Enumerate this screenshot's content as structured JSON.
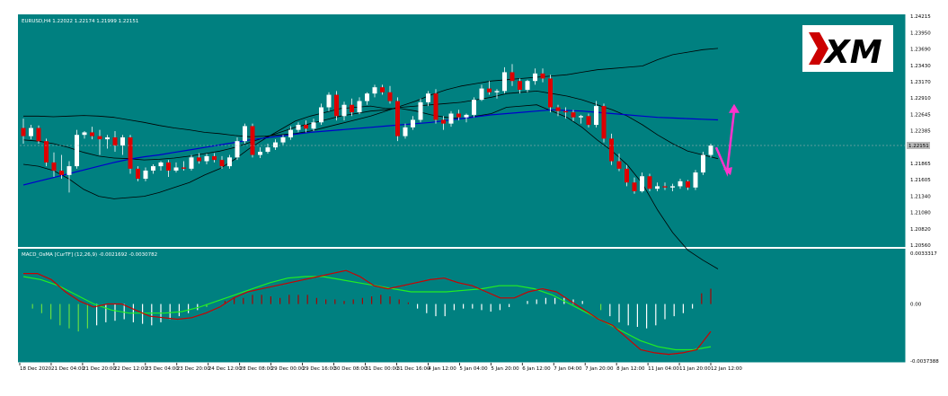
{
  "colors": {
    "background": "#008080",
    "frame": "#ffffff",
    "bull_candle": "#ffffff",
    "bear_candle": "#dd0000",
    "wick": "#ffffff",
    "bands": "#000000",
    "ma": "#0000cc",
    "macd_main": "#cc0000",
    "macd_signal": "#22ee22",
    "hist_pos": "#ffffff",
    "hist_neg_light": "#66dd44",
    "hist_pos_red": "#aa0000",
    "arrow": "#ff33cc",
    "current_price_line": "#bbbbbb",
    "logo_bg": "#ffffff",
    "logo_red": "#cc0000",
    "logo_black": "#000000"
  },
  "logo": {
    "text": "XM",
    "name": "xm-logo"
  },
  "chart_data": [
    {
      "type": "candlestick",
      "title": "EURUSD,H4  1.22022 1.22174 1.21999 1.22151",
      "symbol": "EURUSD",
      "timeframe": "H4",
      "ohlc_header": {
        "open": "1.22022",
        "high": "1.22174",
        "low": "1.21999",
        "close": "1.22151"
      },
      "current_price_label": "1.22151",
      "ylim": [
        1.2056,
        1.24215
      ],
      "y_ticks": [
        "1.24215",
        "1.23950",
        "1.23690",
        "1.23430",
        "1.23170",
        "1.22910",
        "1.22645",
        "1.22385",
        "1.21865",
        "1.21605",
        "1.21340",
        "1.21080",
        "1.20820",
        "1.20560"
      ],
      "x_tick_labels": [
        "18 Dec 2020",
        "21 Dec 04:00",
        "21 Dec 20:00",
        "22 Dec 12:00",
        "23 Dec 04:00",
        "23 Dec 20:00",
        "24 Dec 12:00",
        "28 Dec 08:00",
        "29 Dec 00:00",
        "29 Dec 16:00",
        "30 Dec 08:00",
        "31 Dec 00:00",
        "31 Dec 16:00",
        "4 Jan 12:00",
        "5 Jan 04:00",
        "5 Jan 20:00",
        "6 Jan 12:00",
        "7 Jan 04:00",
        "7 Jan 20:00",
        "8 Jan 12:00",
        "11 Jan 04:00",
        "11 Jan 20:00",
        "12 Jan 12:00"
      ],
      "candles": [
        {
          "o": 1.2243,
          "h": 1.2258,
          "l": 1.2218,
          "c": 1.223
        },
        {
          "o": 1.223,
          "h": 1.2248,
          "l": 1.2225,
          "c": 1.2243
        },
        {
          "o": 1.2243,
          "h": 1.2247,
          "l": 1.2218,
          "c": 1.2222
        },
        {
          "o": 1.2222,
          "h": 1.2226,
          "l": 1.2182,
          "c": 1.2188
        },
        {
          "o": 1.2188,
          "h": 1.2204,
          "l": 1.2165,
          "c": 1.2175
        },
        {
          "o": 1.2175,
          "h": 1.22,
          "l": 1.2162,
          "c": 1.2168
        },
        {
          "o": 1.2168,
          "h": 1.219,
          "l": 1.214,
          "c": 1.2182
        },
        {
          "o": 1.2182,
          "h": 1.224,
          "l": 1.2178,
          "c": 1.2232
        },
        {
          "o": 1.2232,
          "h": 1.2238,
          "l": 1.2226,
          "c": 1.2236
        },
        {
          "o": 1.2236,
          "h": 1.2245,
          "l": 1.2225,
          "c": 1.223
        },
        {
          "o": 1.223,
          "h": 1.224,
          "l": 1.22,
          "c": 1.2225
        },
        {
          "o": 1.2225,
          "h": 1.2232,
          "l": 1.221,
          "c": 1.2228
        },
        {
          "o": 1.2228,
          "h": 1.2238,
          "l": 1.2205,
          "c": 1.2215
        },
        {
          "o": 1.2215,
          "h": 1.2232,
          "l": 1.22,
          "c": 1.2228
        },
        {
          "o": 1.2228,
          "h": 1.2232,
          "l": 1.217,
          "c": 1.2178
        },
        {
          "o": 1.2178,
          "h": 1.2182,
          "l": 1.2158,
          "c": 1.2162
        },
        {
          "o": 1.2162,
          "h": 1.218,
          "l": 1.2158,
          "c": 1.2175
        },
        {
          "o": 1.2175,
          "h": 1.2185,
          "l": 1.217,
          "c": 1.2182
        },
        {
          "o": 1.2182,
          "h": 1.219,
          "l": 1.2175,
          "c": 1.2188
        },
        {
          "o": 1.2188,
          "h": 1.2192,
          "l": 1.2165,
          "c": 1.2175
        },
        {
          "o": 1.2175,
          "h": 1.2188,
          "l": 1.2172,
          "c": 1.218
        },
        {
          "o": 1.218,
          "h": 1.219,
          "l": 1.2175,
          "c": 1.2178
        },
        {
          "o": 1.2178,
          "h": 1.22,
          "l": 1.2175,
          "c": 1.2196
        },
        {
          "o": 1.2196,
          "h": 1.2203,
          "l": 1.2186,
          "c": 1.219
        },
        {
          "o": 1.219,
          "h": 1.2202,
          "l": 1.2185,
          "c": 1.2198
        },
        {
          "o": 1.2198,
          "h": 1.2203,
          "l": 1.2188,
          "c": 1.2192
        },
        {
          "o": 1.2192,
          "h": 1.2198,
          "l": 1.2178,
          "c": 1.2182
        },
        {
          "o": 1.2182,
          "h": 1.22,
          "l": 1.2178,
          "c": 1.2196
        },
        {
          "o": 1.2196,
          "h": 1.2228,
          "l": 1.2192,
          "c": 1.2222
        },
        {
          "o": 1.2222,
          "h": 1.225,
          "l": 1.2218,
          "c": 1.2246
        },
        {
          "o": 1.2246,
          "h": 1.225,
          "l": 1.2196,
          "c": 1.22
        },
        {
          "o": 1.22,
          "h": 1.2212,
          "l": 1.2195,
          "c": 1.2205
        },
        {
          "o": 1.2205,
          "h": 1.2218,
          "l": 1.2202,
          "c": 1.2212
        },
        {
          "o": 1.2212,
          "h": 1.2225,
          "l": 1.2208,
          "c": 1.222
        },
        {
          "o": 1.222,
          "h": 1.2232,
          "l": 1.2216,
          "c": 1.2228
        },
        {
          "o": 1.2228,
          "h": 1.2246,
          "l": 1.2224,
          "c": 1.224
        },
        {
          "o": 1.224,
          "h": 1.2252,
          "l": 1.2236,
          "c": 1.2248
        },
        {
          "o": 1.2248,
          "h": 1.2255,
          "l": 1.2236,
          "c": 1.2242
        },
        {
          "o": 1.2242,
          "h": 1.2258,
          "l": 1.2238,
          "c": 1.2252
        },
        {
          "o": 1.2252,
          "h": 1.2282,
          "l": 1.2248,
          "c": 1.2276
        },
        {
          "o": 1.2276,
          "h": 1.23,
          "l": 1.227,
          "c": 1.2296
        },
        {
          "o": 1.2296,
          "h": 1.2302,
          "l": 1.2255,
          "c": 1.2262
        },
        {
          "o": 1.2262,
          "h": 1.2285,
          "l": 1.2255,
          "c": 1.228
        },
        {
          "o": 1.228,
          "h": 1.229,
          "l": 1.2262,
          "c": 1.2268
        },
        {
          "o": 1.2268,
          "h": 1.2292,
          "l": 1.2265,
          "c": 1.2286
        },
        {
          "o": 1.2286,
          "h": 1.23,
          "l": 1.228,
          "c": 1.2298
        },
        {
          "o": 1.2298,
          "h": 1.2312,
          "l": 1.2292,
          "c": 1.2308
        },
        {
          "o": 1.2308,
          "h": 1.2312,
          "l": 1.2296,
          "c": 1.23
        },
        {
          "o": 1.23,
          "h": 1.231,
          "l": 1.2282,
          "c": 1.2286
        },
        {
          "o": 1.2286,
          "h": 1.2292,
          "l": 1.2222,
          "c": 1.223
        },
        {
          "o": 1.223,
          "h": 1.225,
          "l": 1.2226,
          "c": 1.2244
        },
        {
          "o": 1.2244,
          "h": 1.2262,
          "l": 1.224,
          "c": 1.2256
        },
        {
          "o": 1.2256,
          "h": 1.229,
          "l": 1.2252,
          "c": 1.2284
        },
        {
          "o": 1.2284,
          "h": 1.2302,
          "l": 1.2278,
          "c": 1.2298
        },
        {
          "o": 1.2298,
          "h": 1.2305,
          "l": 1.225,
          "c": 1.2256
        },
        {
          "o": 1.2256,
          "h": 1.2262,
          "l": 1.224,
          "c": 1.225
        },
        {
          "o": 1.225,
          "h": 1.227,
          "l": 1.2245,
          "c": 1.2266
        },
        {
          "o": 1.2266,
          "h": 1.2272,
          "l": 1.2255,
          "c": 1.226
        },
        {
          "o": 1.226,
          "h": 1.2266,
          "l": 1.2252,
          "c": 1.2264
        },
        {
          "o": 1.2264,
          "h": 1.2292,
          "l": 1.226,
          "c": 1.2288
        },
        {
          "o": 1.2288,
          "h": 1.2312,
          "l": 1.2286,
          "c": 1.2306
        },
        {
          "o": 1.2306,
          "h": 1.2318,
          "l": 1.2296,
          "c": 1.23
        },
        {
          "o": 1.23,
          "h": 1.2305,
          "l": 1.229,
          "c": 1.2302
        },
        {
          "o": 1.2302,
          "h": 1.234,
          "l": 1.2298,
          "c": 1.2332
        },
        {
          "o": 1.2332,
          "h": 1.2345,
          "l": 1.231,
          "c": 1.2318
        },
        {
          "o": 1.2318,
          "h": 1.2322,
          "l": 1.2298,
          "c": 1.2304
        },
        {
          "o": 1.2304,
          "h": 1.232,
          "l": 1.23,
          "c": 1.2318
        },
        {
          "o": 1.2318,
          "h": 1.2338,
          "l": 1.2312,
          "c": 1.233
        },
        {
          "o": 1.233,
          "h": 1.2338,
          "l": 1.2316,
          "c": 1.2322
        },
        {
          "o": 1.2322,
          "h": 1.2328,
          "l": 1.2268,
          "c": 1.2276
        },
        {
          "o": 1.2276,
          "h": 1.228,
          "l": 1.2262,
          "c": 1.227
        },
        {
          "o": 1.227,
          "h": 1.2276,
          "l": 1.2258,
          "c": 1.2268
        },
        {
          "o": 1.2268,
          "h": 1.2272,
          "l": 1.2254,
          "c": 1.226
        },
        {
          "o": 1.226,
          "h": 1.2264,
          "l": 1.225,
          "c": 1.2262
        },
        {
          "o": 1.2262,
          "h": 1.2266,
          "l": 1.2244,
          "c": 1.2248
        },
        {
          "o": 1.2248,
          "h": 1.2286,
          "l": 1.2244,
          "c": 1.2278
        },
        {
          "o": 1.2278,
          "h": 1.2282,
          "l": 1.222,
          "c": 1.2226
        },
        {
          "o": 1.2226,
          "h": 1.2234,
          "l": 1.2184,
          "c": 1.219
        },
        {
          "o": 1.219,
          "h": 1.2202,
          "l": 1.2174,
          "c": 1.2178
        },
        {
          "o": 1.2178,
          "h": 1.2184,
          "l": 1.215,
          "c": 1.2156
        },
        {
          "o": 1.2156,
          "h": 1.2164,
          "l": 1.2138,
          "c": 1.2142
        },
        {
          "o": 1.2142,
          "h": 1.2172,
          "l": 1.214,
          "c": 1.2166
        },
        {
          "o": 1.2166,
          "h": 1.217,
          "l": 1.2142,
          "c": 1.2146
        },
        {
          "o": 1.2146,
          "h": 1.2156,
          "l": 1.2142,
          "c": 1.215
        },
        {
          "o": 1.215,
          "h": 1.2156,
          "l": 1.2144,
          "c": 1.2148
        },
        {
          "o": 1.2148,
          "h": 1.2154,
          "l": 1.2142,
          "c": 1.215
        },
        {
          "o": 1.215,
          "h": 1.2162,
          "l": 1.2146,
          "c": 1.2158
        },
        {
          "o": 1.2158,
          "h": 1.216,
          "l": 1.2144,
          "c": 1.2148
        },
        {
          "o": 1.2148,
          "h": 1.2176,
          "l": 1.2144,
          "c": 1.2172
        },
        {
          "o": 1.2172,
          "h": 1.2205,
          "l": 1.2168,
          "c": 1.22
        },
        {
          "o": 1.22,
          "h": 1.2218,
          "l": 1.2196,
          "c": 1.2215
        }
      ],
      "bollinger_upper": [
        1.2262,
        1.2262,
        1.2261,
        1.2262,
        1.2263,
        1.2262,
        1.226,
        1.2256,
        1.2252,
        1.2247,
        1.2243,
        1.224,
        1.2236,
        1.2234,
        1.2231,
        1.2229,
        1.223,
        1.2232,
        1.2234,
        1.2238,
        1.2244,
        1.225,
        1.2256,
        1.2262,
        1.227,
        1.2278,
        1.2286,
        1.2296,
        1.2304,
        1.231,
        1.2314,
        1.2318,
        1.232,
        1.2322,
        1.2324,
        1.2326,
        1.2328,
        1.2332,
        1.2336,
        1.2338,
        1.234,
        1.2342,
        1.2352,
        1.236,
        1.2364,
        1.2368,
        1.237
      ],
      "bollinger_middle": [
        1.2224,
        1.2222,
        1.2218,
        1.2212,
        1.2204,
        1.2198,
        1.2195,
        1.2194,
        1.2192,
        1.2193,
        1.2195,
        1.2198,
        1.2202,
        1.2206,
        1.2212,
        1.222,
        1.2228,
        1.2236,
        1.2244,
        1.225,
        1.2256,
        1.2262,
        1.2266,
        1.227,
        1.2272,
        1.2276,
        1.2278,
        1.228,
        1.2282,
        1.2284,
        1.2288,
        1.2292,
        1.2298,
        1.23,
        1.2302,
        1.2298,
        1.2294,
        1.2288,
        1.228,
        1.2272,
        1.2262,
        1.2248,
        1.2232,
        1.2218,
        1.2206,
        1.22,
        1.2194
      ],
      "bollinger_lower": [
        1.2185,
        1.2182,
        1.2175,
        1.2162,
        1.2145,
        1.2134,
        1.213,
        1.2132,
        1.2134,
        1.214,
        1.2148,
        1.2156,
        1.2168,
        1.2178,
        1.2193,
        1.2211,
        1.2226,
        1.224,
        1.2254,
        1.2262,
        1.2268,
        1.2274,
        1.2276,
        1.2278,
        1.2274,
        1.2274,
        1.227,
        1.2264,
        1.226,
        1.2258,
        1.2262,
        1.2266,
        1.2276,
        1.2278,
        1.228,
        1.227,
        1.226,
        1.2244,
        1.2224,
        1.2206,
        1.2184,
        1.2154,
        1.2112,
        1.2076,
        1.2048,
        1.2032,
        1.2018
      ],
      "moving_average": [
        1.2152,
        1.2158,
        1.2164,
        1.217,
        1.2176,
        1.2182,
        1.2188,
        1.2193,
        1.2197,
        1.22,
        1.2204,
        1.2208,
        1.2212,
        1.2216,
        1.222,
        1.2224,
        1.2227,
        1.223,
        1.2233,
        1.2236,
        1.2238,
        1.224,
        1.2242,
        1.2244,
        1.2246,
        1.2248,
        1.225,
        1.2252,
        1.2255,
        1.2258,
        1.2261,
        1.2264,
        1.2266,
        1.2268,
        1.227,
        1.2272,
        1.2271,
        1.227,
        1.2268,
        1.2266,
        1.2264,
        1.2262,
        1.226,
        1.2259,
        1.2258,
        1.2257,
        1.2256
      ],
      "forecast_arrow": [
        1.2212,
        1.2172,
        1.227
      ]
    },
    {
      "type": "macd",
      "title": "MACD_OsMA [CurTF] (12,26,9) -0.0021692 -0.0030782",
      "parameters": "(12,26,9)",
      "values_shown": [
        "-0.0021692",
        "-0.0030782"
      ],
      "y_ticks": [
        "0.0033317",
        "0.00",
        "-0.0037388"
      ],
      "ylim": [
        -0.0037388,
        0.0033317
      ],
      "histogram": [
        0.0,
        -0.0003,
        -0.0006,
        -0.001,
        -0.0014,
        -0.0016,
        -0.0018,
        -0.0016,
        -0.0014,
        -0.0012,
        -0.0011,
        -0.001,
        -0.0012,
        -0.0013,
        -0.0014,
        -0.0012,
        -0.001,
        -0.0008,
        -0.0006,
        -0.0004,
        -0.0002,
        0.0,
        0.0002,
        0.0004,
        0.0004,
        0.0006,
        0.0006,
        0.0005,
        0.0004,
        0.0006,
        0.0006,
        0.0006,
        0.0004,
        0.0003,
        0.0003,
        0.0002,
        0.0003,
        0.0004,
        0.0005,
        0.0006,
        0.0005,
        0.0003,
        0.0001,
        -0.0003,
        -0.0006,
        -0.0008,
        -0.0008,
        -0.0004,
        -0.0003,
        -0.0003,
        -0.0004,
        -0.0005,
        -0.0004,
        -0.0002,
        0.0,
        0.0002,
        0.0003,
        0.0004,
        0.0004,
        0.0004,
        0.0003,
        0.0002,
        0.0,
        -0.0004,
        -0.0008,
        -0.0012,
        -0.0014,
        -0.0015,
        -0.0016,
        -0.0014,
        -0.001,
        -0.0008,
        -0.0006,
        -0.0003,
        0.0007,
        0.001
      ],
      "macd_main": [
        0.002,
        0.002,
        0.0016,
        0.0008,
        0.0002,
        -0.0002,
        0.0,
        0.0,
        -0.0004,
        -0.0008,
        -0.0009,
        -0.001,
        -0.0009,
        -0.0006,
        -0.0002,
        0.0004,
        0.0008,
        0.001,
        0.0012,
        0.0014,
        0.0016,
        0.0018,
        0.002,
        0.0022,
        0.0018,
        0.0012,
        0.001,
        0.0012,
        0.0014,
        0.0016,
        0.0017,
        0.0014,
        0.0012,
        0.0008,
        0.0004,
        0.0004,
        0.0008,
        0.001,
        0.0008,
        0.0002,
        -0.0004,
        -0.001,
        -0.0014,
        -0.0022,
        -0.003,
        -0.0032,
        -0.0033,
        -0.0032,
        -0.003,
        -0.0018
      ],
      "macd_signal": [
        0.0018,
        0.0016,
        0.0012,
        0.0006,
        0.0,
        -0.0004,
        -0.0006,
        -0.0006,
        -0.0006,
        -0.0005,
        -0.0002,
        0.0002,
        0.0006,
        0.001,
        0.0014,
        0.0017,
        0.0018,
        0.0018,
        0.0016,
        0.0014,
        0.0012,
        0.001,
        0.0008,
        0.0008,
        0.0008,
        0.0009,
        0.001,
        0.0012,
        0.0012,
        0.001,
        0.0006,
        0.0,
        -0.0006,
        -0.0012,
        -0.0018,
        -0.0024,
        -0.0028,
        -0.003,
        -0.003,
        -0.0028
      ]
    }
  ]
}
